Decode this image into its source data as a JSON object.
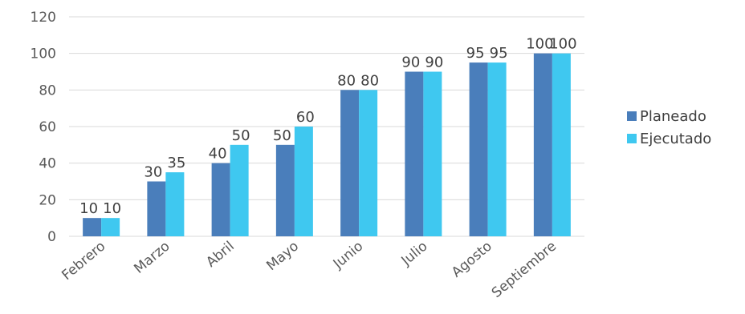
{
  "chart_data": {
    "type": "bar",
    "categories": [
      "Febrero",
      "Marzo",
      "Abril",
      "Mayo",
      "Junio",
      "Julio",
      "Agosto",
      "Septiembre"
    ],
    "series": [
      {
        "name": "Planeado",
        "values": [
          10,
          30,
          40,
          50,
          80,
          90,
          95,
          100
        ],
        "color": "#4a7ebb"
      },
      {
        "name": "Ejecutado",
        "values": [
          10,
          35,
          50,
          60,
          80,
          90,
          95,
          100
        ],
        "color": "#3fc8f0"
      }
    ],
    "ylim": [
      0,
      120
    ],
    "yticks": [
      0,
      20,
      40,
      60,
      80,
      100,
      120
    ],
    "grid": true,
    "legend_position": "right",
    "data_labels": true,
    "gridline_color": "#d9d9d9"
  }
}
